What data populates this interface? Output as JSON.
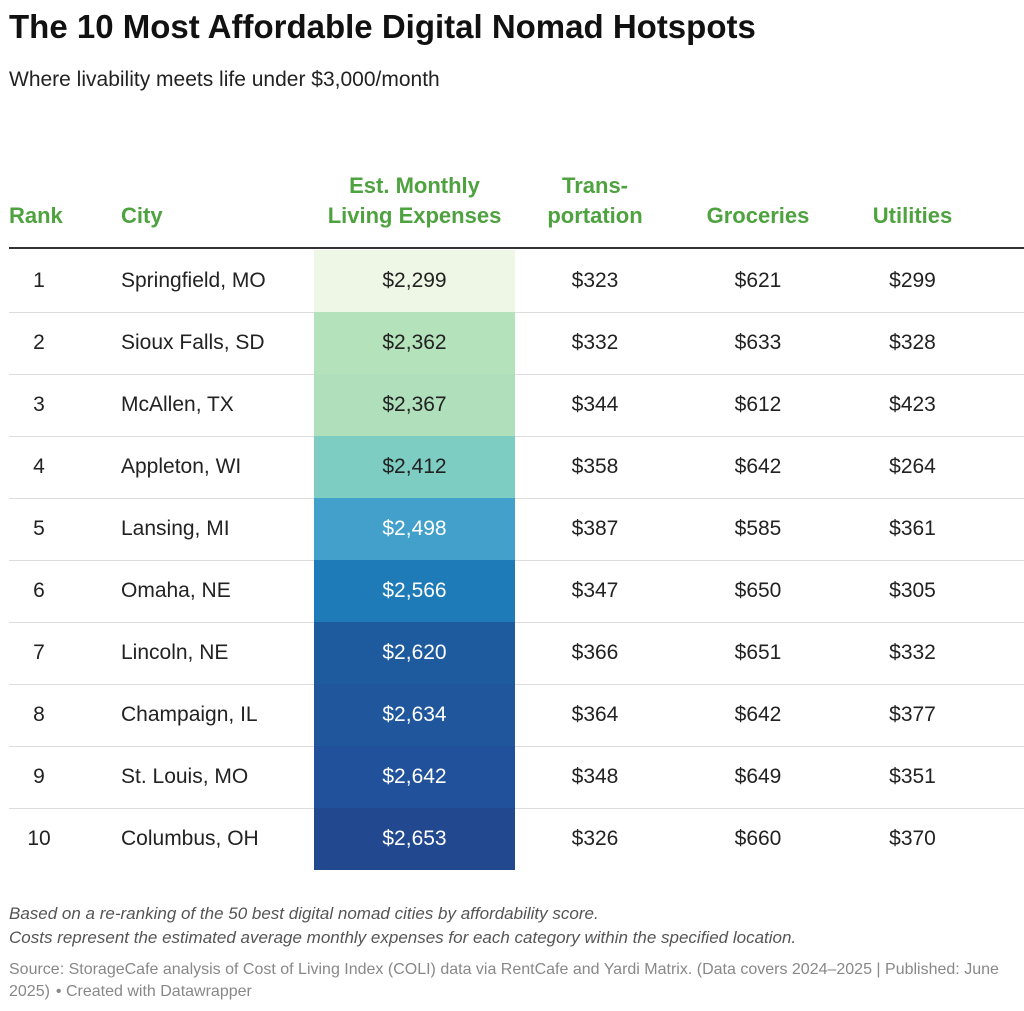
{
  "header": {
    "title": "The 10 Most Affordable Digital Nomad Hotspots",
    "subtitle": "Where livability meets life under $3,000/month"
  },
  "table": {
    "columns": [
      "Rank",
      "City",
      "Est. Monthly Living Expenses",
      "Trans-portation",
      "Groceries",
      "Utilities"
    ],
    "rows": [
      [
        "1",
        "Springfield, MO",
        "$2,299",
        "$323",
        "$621",
        "$299"
      ],
      [
        "2",
        "Sioux Falls, SD",
        "$2,362",
        "$332",
        "$633",
        "$328"
      ],
      [
        "3",
        "McAllen, TX",
        "$2,367",
        "$344",
        "$612",
        "$423"
      ],
      [
        "4",
        "Appleton, WI",
        "$2,412",
        "$358",
        "$642",
        "$264"
      ],
      [
        "5",
        "Lansing, MI",
        "$2,498",
        "$387",
        "$585",
        "$361"
      ],
      [
        "6",
        "Omaha, NE",
        "$2,566",
        "$347",
        "$650",
        "$305"
      ],
      [
        "7",
        "Lincoln, NE",
        "$2,620",
        "$366",
        "$651",
        "$332"
      ],
      [
        "8",
        "Champaign, IL",
        "$2,634",
        "$364",
        "$642",
        "$377"
      ],
      [
        "9",
        "St. Louis, MO",
        "$2,642",
        "$348",
        "$649",
        "$351"
      ],
      [
        "10",
        "Columbus, OH",
        "$2,653",
        "$326",
        "$660",
        "$370"
      ]
    ],
    "expense_colors": [
      "#eef7e6",
      "#b3e2bb",
      "#b0e0bb",
      "#7ecdc3",
      "#42a0cb",
      "#1e7bb8",
      "#1d5a9e",
      "#1f569c",
      "#21519a",
      "#22498f"
    ]
  },
  "footer": {
    "notes": [
      "Based on a re-ranking of the 50 best digital nomad cities by affordability score.",
      "Costs represent the estimated average monthly expenses for each category within the specified location."
    ],
    "source": "Source: StorageCafe analysis of Cost of Living Index (COLI) data via RentCafe and Yardi Matrix. (Data covers 2024–2025 | Published: June 2025)",
    "credit": "• Created with Datawrapper"
  }
}
